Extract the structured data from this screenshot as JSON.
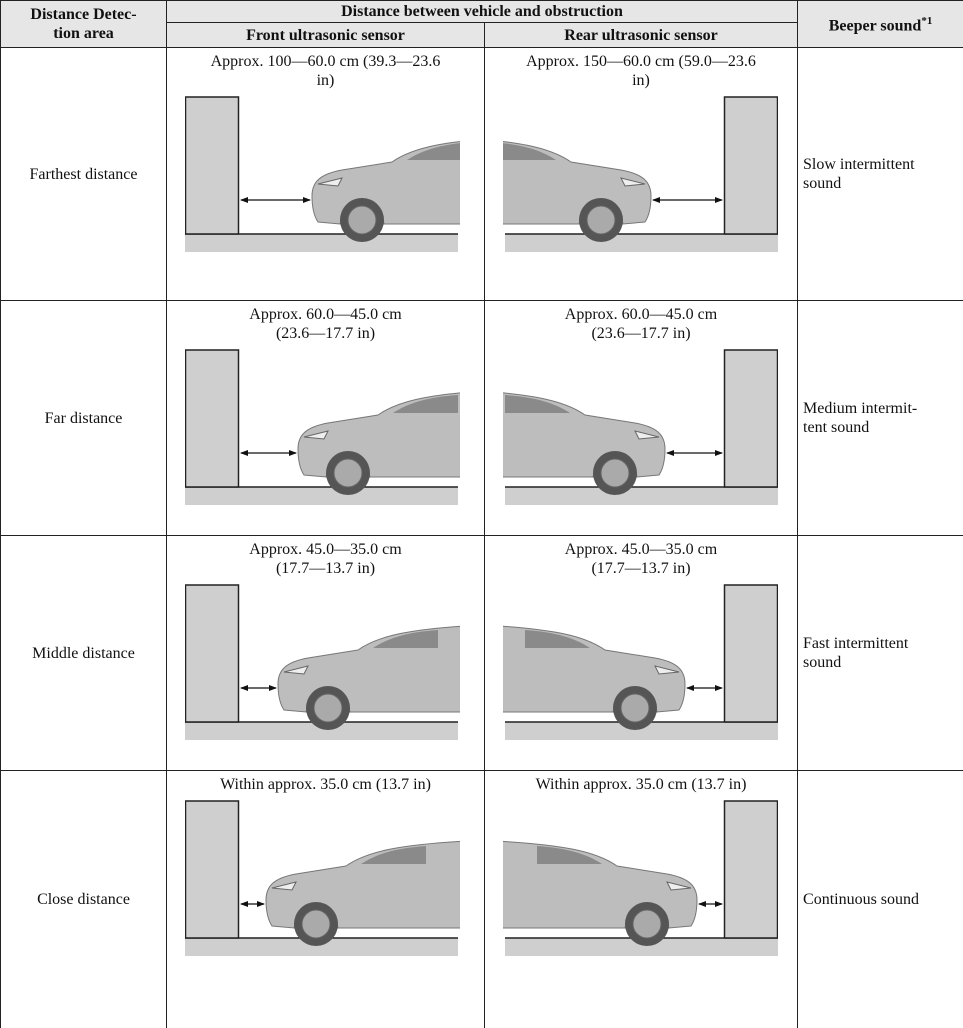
{
  "header": {
    "area": [
      "Distance Detec-",
      "tion area"
    ],
    "distance": "Distance between vehicle and obstruction",
    "front": "Front ultrasonic sensor",
    "rear": "Rear ultrasonic sensor",
    "beeper": "Beeper sound",
    "beeper_note": "*1"
  },
  "rows": [
    {
      "area": "Farthest distance",
      "front": [
        "Approx. 100—60.0 cm (39.3—23.6",
        "in)"
      ],
      "rear": [
        "Approx. 150—60.0 cm (59.0—23.6",
        "in)"
      ],
      "beeper": [
        "Slow intermittent",
        "sound"
      ]
    },
    {
      "area": "Far distance",
      "front": [
        "Approx. 60.0—45.0 cm",
        "(23.6—17.7 in)"
      ],
      "rear": [
        "Approx. 60.0—45.0 cm",
        "(23.6—17.7 in)"
      ],
      "beeper": [
        "Medium intermit-",
        "tent sound"
      ]
    },
    {
      "area": "Middle distance",
      "front": [
        "Approx. 45.0—35.0 cm",
        "(17.7—13.7 in)"
      ],
      "rear": [
        "Approx. 45.0—35.0 cm",
        "(17.7—13.7 in)"
      ],
      "beeper": [
        "Fast intermittent",
        "sound"
      ]
    },
    {
      "area": "Close distance",
      "front": [
        "Within approx. 35.0 cm (13.7 in)"
      ],
      "rear": [
        "Within approx. 35.0 cm (13.7 in)"
      ],
      "beeper": [
        "Continuous sound"
      ]
    }
  ]
}
